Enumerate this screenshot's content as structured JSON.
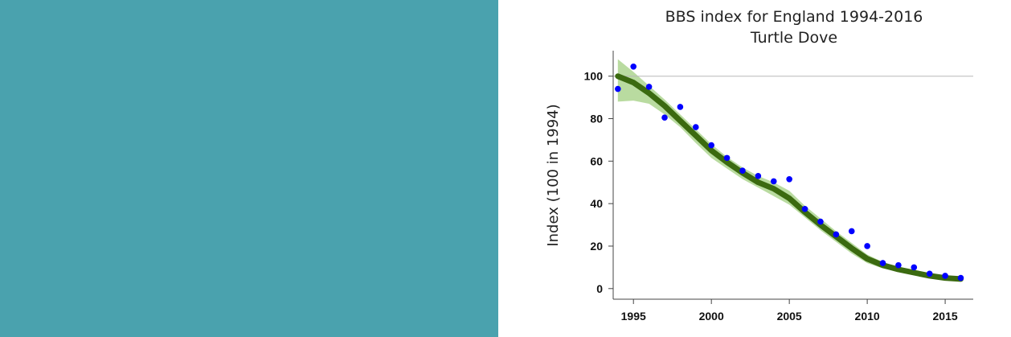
{
  "panel": {
    "color": "#4aa2ae"
  },
  "chart_data": {
    "type": "line",
    "title": "BBS index for England 1994-2016",
    "subtitle": "Turtle Dove",
    "xlabel": "",
    "ylabel": "Index (100 in 1994)",
    "xlim": [
      1993.7,
      2016.8
    ],
    "ylim": [
      -5,
      112
    ],
    "xticks": [
      1995,
      2000,
      2005,
      2010,
      2015
    ],
    "yticks": [
      0,
      20,
      40,
      60,
      80,
      100
    ],
    "reference_line": 100,
    "grid": false,
    "series": [
      {
        "kind": "points",
        "color": "#0000ff",
        "x": [
          1994,
          1995,
          1996,
          1997,
          1998,
          1999,
          2000,
          2001,
          2002,
          2003,
          2004,
          2005,
          2006,
          2007,
          2008,
          2009,
          2010,
          2011,
          2012,
          2013,
          2014,
          2015,
          2016
        ],
        "y": [
          94,
          104.5,
          95,
          80.5,
          85.5,
          76,
          67.5,
          61.5,
          55.5,
          53,
          50.5,
          51.5,
          37.5,
          31.5,
          25.5,
          27,
          20,
          12,
          11,
          10,
          7,
          6,
          5
        ]
      },
      {
        "kind": "smoothed",
        "color": "#3b6a10",
        "x": [
          1994,
          1995,
          1996,
          1997,
          1998,
          1999,
          2000,
          2001,
          2002,
          2003,
          2004,
          2005,
          2006,
          2007,
          2008,
          2009,
          2010,
          2011,
          2012,
          2013,
          2014,
          2015,
          2016
        ],
        "y": [
          100,
          97,
          92,
          86,
          79,
          72,
          65,
          59.5,
          54.5,
          50,
          47,
          42.5,
          36,
          30,
          24.5,
          19,
          14,
          11,
          9,
          7.5,
          6,
          5,
          4.5
        ]
      },
      {
        "kind": "confidence_band",
        "color": "#b9dba0",
        "x": [
          1994,
          1995,
          1996,
          1997,
          1998,
          1999,
          2000,
          2001,
          2002,
          2003,
          2004,
          2005,
          2006,
          2007,
          2008,
          2009,
          2010,
          2011,
          2012,
          2013,
          2014,
          2015,
          2016
        ],
        "upper": [
          108,
          102,
          95.5,
          89,
          82,
          75,
          68,
          62,
          57,
          53,
          50,
          46,
          39,
          33,
          27,
          21.5,
          16,
          12.5,
          10,
          8.5,
          7,
          6,
          5.5
        ],
        "lower": [
          88,
          88.5,
          87,
          82,
          76,
          68.5,
          61.5,
          56.5,
          51.5,
          47.5,
          43.5,
          39.5,
          33.5,
          27.5,
          22,
          16.5,
          12,
          9.5,
          8,
          6.5,
          5,
          4,
          3.5
        ]
      }
    ]
  }
}
